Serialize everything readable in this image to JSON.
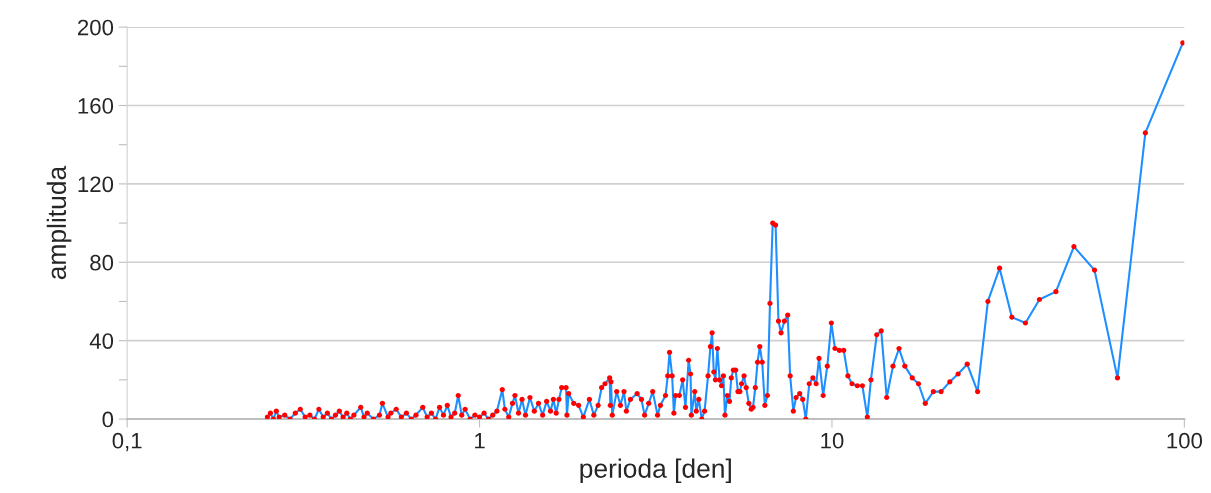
{
  "chart_data": {
    "type": "line",
    "xlabel": "perioda [den]",
    "ylabel": "amplituda",
    "log": "x",
    "xlim": [
      0.1,
      100
    ],
    "xticks": [
      {
        "value": 0.1,
        "label": "0,1"
      },
      1,
      10,
      100
    ],
    "ylim": [
      0,
      200
    ],
    "yticks": [
      0,
      {
        "value": 20,
        "label": null
      },
      40,
      {
        "value": 60,
        "label": null
      },
      80,
      {
        "value": 100,
        "label": null
      },
      120,
      {
        "value": 140,
        "label": null
      },
      160,
      {
        "value": 180,
        "label": null
      },
      200
    ],
    "grid": "y",
    "legend": false,
    "x": [
      0.25,
      0.255,
      0.26,
      0.265,
      0.27,
      0.28,
      0.29,
      0.3,
      0.31,
      0.32,
      0.33,
      0.34,
      0.35,
      0.36,
      0.37,
      0.38,
      0.39,
      0.4,
      0.41,
      0.42,
      0.43,
      0.44,
      0.46,
      0.47,
      0.48,
      0.5,
      0.52,
      0.53,
      0.55,
      0.56,
      0.58,
      0.6,
      0.62,
      0.64,
      0.66,
      0.69,
      0.71,
      0.73,
      0.75,
      0.77,
      0.79,
      0.81,
      0.83,
      0.85,
      0.87,
      0.89,
      0.91,
      0.94,
      0.97,
      1.0,
      1.03,
      1.06,
      1.09,
      1.12,
      1.16,
      1.18,
      1.21,
      1.24,
      1.26,
      1.29,
      1.32,
      1.35,
      1.39,
      1.43,
      1.47,
      1.51,
      1.55,
      1.59,
      1.62,
      1.65,
      1.68,
      1.71,
      1.76,
      1.77,
      1.79,
      1.85,
      1.91,
      1.97,
      2.05,
      2.11,
      2.17,
      2.22,
      2.27,
      2.34,
      2.35,
      2.36,
      2.38,
      2.45,
      2.51,
      2.57,
      2.61,
      2.68,
      2.8,
      2.88,
      2.94,
      3.02,
      3.1,
      3.2,
      3.26,
      3.37,
      3.42,
      3.46,
      3.52,
      3.56,
      3.6,
      3.69,
      3.77,
      3.84,
      3.92,
      3.97,
      3.99,
      4.08,
      4.12,
      4.19,
      4.27,
      4.35,
      4.45,
      4.52,
      4.57,
      4.62,
      4.67,
      4.73,
      4.8,
      4.86,
      4.92,
      4.97,
      5.05,
      5.12,
      5.18,
      5.25,
      5.33,
      5.41,
      5.48,
      5.54,
      5.63,
      5.71,
      5.81,
      5.9,
      5.97,
      6.06,
      6.15,
      6.24,
      6.34,
      6.45,
      6.56,
      6.67,
      6.79,
      6.92,
      7.05,
      7.17,
      7.33,
      7.49,
      7.61,
      7.77,
      7.91,
      8.1,
      8.26,
      8.43,
      8.62,
      8.83,
      9.02,
      9.19,
      9.44,
      9.7,
      9.96,
      10.2,
      10.5,
      10.8,
      11.1,
      11.4,
      11.8,
      12.2,
      12.6,
      12.9,
      13.4,
      13.8,
      14.3,
      14.9,
      15.5,
      16.1,
      16.9,
      17.6,
      18.4,
      19.4,
      20.4,
      21.6,
      22.8,
      24.2,
      25.9,
      27.7,
      29.9,
      32.4,
      35.4,
      38.8,
      43.2,
      48.6,
      55.6,
      64.6,
      77.5,
      99
    ],
    "series": [
      {
        "color": "#1e8fff",
        "marker": "none",
        "line_style": "solid",
        "values": [
          1,
          3,
          0,
          4,
          1,
          2,
          0,
          3,
          5,
          1,
          2,
          0,
          5,
          1,
          3,
          0,
          2,
          4,
          1,
          3,
          0,
          2,
          6,
          1,
          3,
          0,
          2,
          8,
          1,
          3,
          5,
          1,
          3,
          0,
          2,
          6,
          1,
          3,
          0,
          6,
          2,
          7,
          1,
          3,
          12,
          2,
          5,
          0,
          2,
          1,
          3,
          0,
          2,
          4,
          15,
          5,
          1,
          8,
          12,
          3,
          10,
          2,
          11,
          4,
          8,
          2,
          9,
          4,
          10,
          3,
          10,
          16,
          16,
          2,
          13,
          8,
          7,
          1,
          10,
          2,
          7,
          16,
          18,
          21,
          7,
          19,
          2,
          14,
          7,
          14,
          4,
          10,
          13,
          10,
          2,
          8,
          14,
          2,
          7,
          12,
          22,
          34,
          22,
          3,
          12,
          12,
          20,
          6,
          30,
          23,
          2,
          14,
          4,
          10,
          0,
          4,
          22,
          37,
          44,
          24,
          20,
          36,
          20,
          17,
          22,
          2,
          12,
          9,
          21,
          25,
          25,
          14,
          14,
          18,
          22,
          16,
          8,
          5,
          6,
          16,
          29,
          37,
          29,
          7,
          12,
          59,
          100,
          99,
          50,
          44,
          50,
          53,
          22,
          4,
          11,
          13,
          10,
          0,
          18,
          21,
          18,
          31,
          12,
          27,
          49,
          36,
          35,
          35,
          22,
          18,
          17,
          17,
          1,
          20,
          43,
          45,
          11,
          27,
          36,
          27,
          21,
          18,
          8,
          14,
          14,
          19,
          23,
          28,
          14,
          60,
          77,
          52,
          49,
          61,
          65,
          88,
          76,
          21,
          146,
          192
        ]
      },
      {
        "type": "scatter",
        "color": "#ff0000",
        "marker": "circle",
        "values": [
          1,
          3,
          0,
          4,
          1,
          2,
          0,
          3,
          5,
          1,
          2,
          0,
          5,
          1,
          3,
          0,
          2,
          4,
          1,
          3,
          0,
          2,
          6,
          1,
          3,
          0,
          2,
          8,
          1,
          3,
          5,
          1,
          3,
          0,
          2,
          6,
          1,
          3,
          0,
          6,
          2,
          7,
          1,
          3,
          12,
          2,
          5,
          0,
          2,
          1,
          3,
          0,
          2,
          4,
          15,
          5,
          1,
          8,
          12,
          3,
          10,
          2,
          11,
          4,
          8,
          2,
          9,
          4,
          10,
          3,
          10,
          16,
          16,
          2,
          13,
          8,
          7,
          1,
          10,
          2,
          7,
          16,
          18,
          21,
          7,
          19,
          2,
          14,
          7,
          14,
          4,
          10,
          13,
          10,
          2,
          8,
          14,
          2,
          7,
          12,
          22,
          34,
          22,
          3,
          12,
          12,
          20,
          6,
          30,
          23,
          2,
          14,
          4,
          10,
          0,
          4,
          22,
          37,
          44,
          24,
          20,
          36,
          20,
          17,
          22,
          2,
          12,
          9,
          21,
          25,
          25,
          14,
          14,
          18,
          22,
          16,
          8,
          5,
          6,
          16,
          29,
          37,
          29,
          7,
          12,
          59,
          100,
          99,
          50,
          44,
          50,
          53,
          22,
          4,
          11,
          13,
          10,
          0,
          18,
          21,
          18,
          31,
          12,
          27,
          49,
          36,
          35,
          35,
          22,
          18,
          17,
          17,
          1,
          20,
          43,
          45,
          11,
          27,
          36,
          27,
          21,
          18,
          8,
          14,
          14,
          19,
          23,
          28,
          14,
          60,
          77,
          52,
          49,
          61,
          65,
          88,
          76,
          21,
          146,
          192
        ]
      }
    ]
  }
}
